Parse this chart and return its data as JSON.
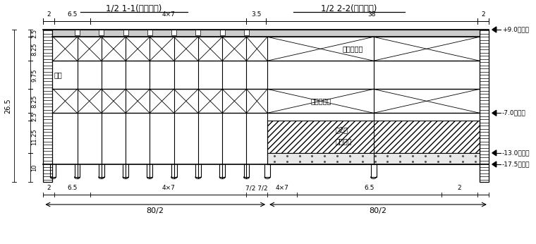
{
  "title_left": "1/2 1-1(封底施工)",
  "title_right": "1/2 2-2(承台施工)",
  "bg_color": "#ffffff",
  "lc": "#000000",
  "elev_labels": [
    "+9.0吸筱顶",
    "-7.0承台顶",
    "-13.0承台底",
    "-17.5吸筱底"
  ],
  "label_top_support": "顶层内支摔",
  "label_bot_support": "底层内支摔",
  "label_fen2ci": "分2次",
  "label_jiaozhu": "浇注承台",
  "label_diaoGan": "吸杆",
  "top_dims": [
    "2",
    "6.5",
    "4×7",
    "3.5",
    "38",
    "2"
  ],
  "bot_dims": [
    "2",
    "6.5",
    "4×7",
    "7/2 7/2",
    "4×7",
    "6.5",
    "2"
  ],
  "spans": [
    "80/2",
    "80/2"
  ],
  "left_dim_overall": "26.5",
  "left_dims_inner": [
    "2.5",
    "8.25",
    "9.75",
    "8.25",
    "2.5",
    "11.25",
    "10"
  ]
}
